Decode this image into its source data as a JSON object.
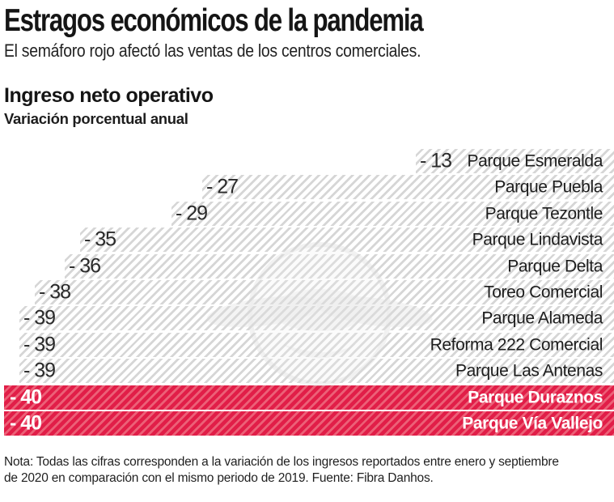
{
  "header": {
    "title": "Estragos económicos de la pandemia",
    "subtitle": "El semáforo rojo afectó las ventas de los centros comerciales."
  },
  "section": {
    "heading": "Ingreso neto operativo",
    "subheading": "Variación porcentual anual"
  },
  "chart_data": {
    "type": "bar",
    "orientation": "horizontal",
    "title": "Ingreso neto operativo",
    "subtitle": "Variación porcentual anual",
    "xlabel": "Variación porcentual anual",
    "xlim": [
      -40,
      0
    ],
    "grid": false,
    "legend": "none",
    "categories": [
      "Parque Esmeralda",
      "Parque Puebla",
      "Parque Tezontle",
      "Parque Lindavista",
      "Parque Delta",
      "Toreo Comercial",
      "Parque Alameda",
      "Reforma 222 Comercial",
      "Parque Las Antenas",
      "Parque Duraznos",
      "Parque Vía Vallejo"
    ],
    "values": [
      -13,
      -27,
      -29,
      -35,
      -36,
      -38,
      -39,
      -39,
      -39,
      -40,
      -40
    ],
    "value_labels": [
      "- 13",
      "- 27",
      "- 29",
      "- 35",
      "- 36",
      "- 38",
      "- 39",
      "- 39",
      "- 39",
      "- 40",
      "- 40"
    ],
    "highlighted": [
      false,
      false,
      false,
      false,
      false,
      false,
      false,
      false,
      false,
      true,
      true
    ],
    "colors": {
      "bar_hatch": "#d6d6d6",
      "bar_background": "#ffffff",
      "highlight_base": "#e11e48",
      "highlight_hatch": "#ec6077",
      "label_text": "#1d1d1d",
      "highlight_text": "#ffffff"
    }
  },
  "note": {
    "line1": "Nota: Todas las cifras corresponden a la variación de los ingresos reportados entre enero y septiembre",
    "line2": "de 2020 en comparación con el mismo periodo de 2019. Fuente: Fibra Danhos."
  }
}
